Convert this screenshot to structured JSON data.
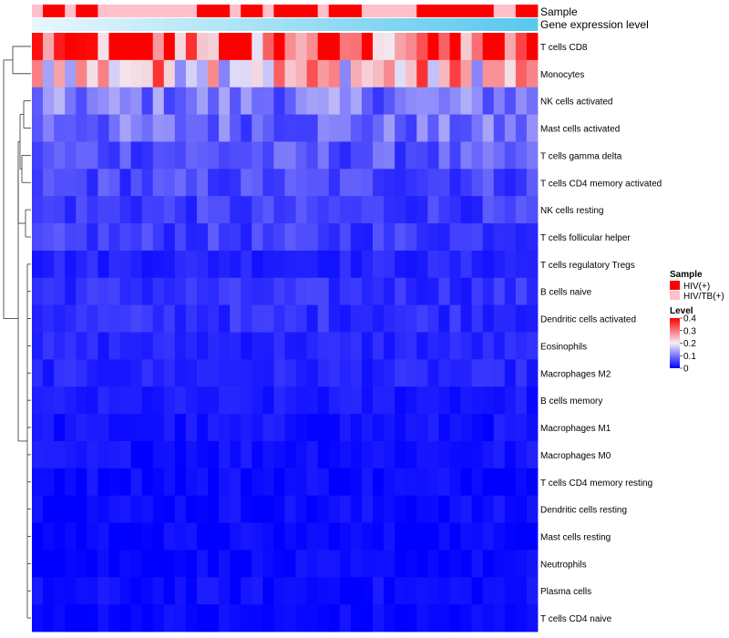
{
  "chart_data": {
    "type": "heatmap",
    "title": "",
    "annotation_tracks": [
      {
        "name": "Sample",
        "kind": "categorical"
      },
      {
        "name": "Gene expression level",
        "kind": "gradient",
        "colors": [
          "#e6f6fd",
          "#5ac8ee"
        ]
      }
    ],
    "sample_groups": [
      "HIV/TB(+)",
      "HIV(+)",
      "HIV(+)",
      "HIV/TB(+)",
      "HIV(+)",
      "HIV(+)",
      "HIV/TB(+)",
      "HIV/TB(+)",
      "HIV/TB(+)",
      "HIV/TB(+)",
      "HIV/TB(+)",
      "HIV/TB(+)",
      "HIV/TB(+)",
      "HIV/TB(+)",
      "HIV/TB(+)",
      "HIV(+)",
      "HIV(+)",
      "HIV(+)",
      "HIV/TB(+)",
      "HIV(+)",
      "HIV(+)",
      "HIV/TB(+)",
      "HIV(+)",
      "HIV(+)",
      "HIV(+)",
      "HIV(+)",
      "HIV/TB(+)",
      "HIV(+)",
      "HIV(+)",
      "HIV(+)",
      "HIV/TB(+)",
      "HIV/TB(+)",
      "HIV/TB(+)",
      "HIV/TB(+)",
      "HIV/TB(+)",
      "HIV(+)",
      "HIV(+)",
      "HIV(+)",
      "HIV(+)",
      "HIV(+)",
      "HIV(+)",
      "HIV(+)",
      "HIV/TB(+)",
      "HIV/TB(+)",
      "HIV(+)",
      "HIV(+)"
    ],
    "rows": [
      "T cells CD8",
      "Monocytes",
      "NK cells activated",
      "Mast cells activated",
      "T cells gamma delta",
      "T cells CD4 memory activated",
      "NK cells resting",
      "T cells follicular helper",
      "T cells regulatory  Tregs",
      "B cells naive",
      "Dendritic cells activated",
      "Eosinophils",
      "Macrophages M2",
      "B cells memory",
      "Macrophages M1",
      "Macrophages M0",
      "T cells CD4 memory resting",
      "Dendritic cells resting",
      "Mast cells resting",
      "Neutrophils",
      "Plasma cells",
      "T cells CD4 naive"
    ],
    "row_means": [
      0.33,
      0.24,
      0.1,
      0.09,
      0.07,
      0.06,
      0.05,
      0.05,
      0.03,
      0.04,
      0.04,
      0.03,
      0.03,
      0.02,
      0.015,
      0.015,
      0.01,
      0.01,
      0.005,
      0.005,
      0.01,
      0.005
    ],
    "n_columns": 46,
    "color_scale": {
      "min": 0,
      "max": 0.4,
      "low": "#0000ff",
      "mid": "#f3eef6",
      "high": "#ff0000"
    },
    "legend": {
      "sample_title": "Sample",
      "sample_entries": [
        {
          "label": "HIV(+)",
          "color": "#ff0000"
        },
        {
          "label": "HIV/TB(+)",
          "color": "#ffc0cb"
        }
      ],
      "level_title": "Level",
      "level_ticks": [
        "0.4",
        "0.3",
        "0.2",
        "0.1",
        "0"
      ],
      "level_tick_values": [
        0.4,
        0.3,
        0.2,
        0.1,
        0
      ]
    },
    "dendrogram": {
      "side": "left",
      "type": "row-clustering"
    }
  }
}
